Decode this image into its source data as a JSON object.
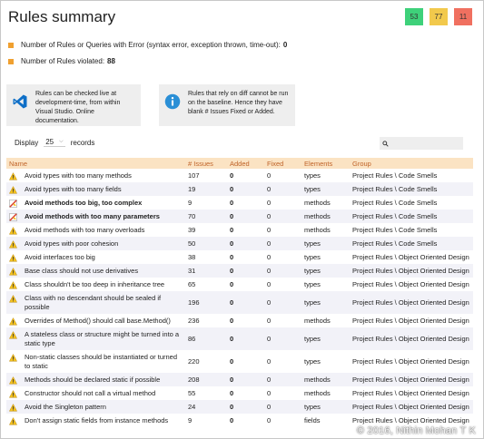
{
  "page": {
    "title": "Rules summary"
  },
  "badges": [
    {
      "value": "53",
      "color": "#3ed17a"
    },
    {
      "value": "77",
      "color": "#f2c94c"
    },
    {
      "value": "11",
      "color": "#f07060"
    }
  ],
  "stats": {
    "errors_label": "Number of Rules or Queries with Error (syntax error, exception thrown, time-out):",
    "errors_value": "0",
    "violated_label": "Number of Rules violated:",
    "violated_value": "88"
  },
  "info": {
    "live_text": "Rules can be checked live at development-time, from within Visual Studio. Online documentation.",
    "baseline_text": "Rules that rely on diff cannot be run on the baseline. Hence they have blank # Issues Fixed or Added."
  },
  "display": {
    "prefix": "Display",
    "value": "25",
    "suffix": "records"
  },
  "table": {
    "headers": {
      "name": "Name",
      "issues": "# Issues",
      "added": "Added",
      "fixed": "Fixed",
      "elements": "Elements",
      "group": "Group"
    },
    "rows": [
      {
        "name": "Avoid types with too many methods",
        "issues": "107",
        "added": "0",
        "fixed": "0",
        "elements": "types",
        "group": "Project Rules \\ Code Smells",
        "critical": false
      },
      {
        "name": "Avoid types with too many fields",
        "issues": "19",
        "added": "0",
        "fixed": "0",
        "elements": "types",
        "group": "Project Rules \\ Code Smells",
        "critical": false
      },
      {
        "name": "Avoid methods too big, too complex",
        "issues": "9",
        "added": "0",
        "fixed": "0",
        "elements": "methods",
        "group": "Project Rules \\ Code Smells",
        "critical": true
      },
      {
        "name": "Avoid methods with too many parameters",
        "issues": "70",
        "added": "0",
        "fixed": "0",
        "elements": "methods",
        "group": "Project Rules \\ Code Smells",
        "critical": true
      },
      {
        "name": "Avoid methods with too many overloads",
        "issues": "39",
        "added": "0",
        "fixed": "0",
        "elements": "methods",
        "group": "Project Rules \\ Code Smells",
        "critical": false
      },
      {
        "name": "Avoid types with poor cohesion",
        "issues": "50",
        "added": "0",
        "fixed": "0",
        "elements": "types",
        "group": "Project Rules \\ Code Smells",
        "critical": false
      },
      {
        "name": "Avoid interfaces too big",
        "issues": "38",
        "added": "0",
        "fixed": "0",
        "elements": "types",
        "group": "Project Rules \\ Object Oriented Design",
        "critical": false
      },
      {
        "name": "Base class should not use derivatives",
        "issues": "31",
        "added": "0",
        "fixed": "0",
        "elements": "types",
        "group": "Project Rules \\ Object Oriented Design",
        "critical": false
      },
      {
        "name": "Class shouldn't be too deep in inheritance tree",
        "issues": "65",
        "added": "0",
        "fixed": "0",
        "elements": "types",
        "group": "Project Rules \\ Object Oriented Design",
        "critical": false
      },
      {
        "name": "Class with no descendant should be sealed if possible",
        "issues": "196",
        "added": "0",
        "fixed": "0",
        "elements": "types",
        "group": "Project Rules \\ Object Oriented Design",
        "critical": false
      },
      {
        "name": "Overrides of Method() should call base.Method()",
        "issues": "236",
        "added": "0",
        "fixed": "0",
        "elements": "methods",
        "group": "Project Rules \\ Object Oriented Design",
        "critical": false
      },
      {
        "name": "A stateless class or structure might be turned into a static type",
        "issues": "86",
        "added": "0",
        "fixed": "0",
        "elements": "types",
        "group": "Project Rules \\ Object Oriented Design",
        "critical": false
      },
      {
        "name": "Non-static classes should be instantiated or turned to static",
        "issues": "220",
        "added": "0",
        "fixed": "0",
        "elements": "types",
        "group": "Project Rules \\ Object Oriented Design",
        "critical": false
      },
      {
        "name": "Methods should be declared static if possible",
        "issues": "208",
        "added": "0",
        "fixed": "0",
        "elements": "methods",
        "group": "Project Rules \\ Object Oriented Design",
        "critical": false
      },
      {
        "name": "Constructor should not call a virtual method",
        "issues": "55",
        "added": "0",
        "fixed": "0",
        "elements": "methods",
        "group": "Project Rules \\ Object Oriented Design",
        "critical": false
      },
      {
        "name": "Avoid the Singleton pattern",
        "issues": "24",
        "added": "0",
        "fixed": "0",
        "elements": "types",
        "group": "Project Rules \\ Object Oriented Design",
        "critical": false
      },
      {
        "name": "Don't assign static fields from instance methods",
        "issues": "9",
        "added": "0",
        "fixed": "0",
        "elements": "fields",
        "group": "Project Rules \\ Object Oriented Design",
        "critical": false
      }
    ]
  },
  "watermark": "© 2016, Nithin Mohan T K"
}
